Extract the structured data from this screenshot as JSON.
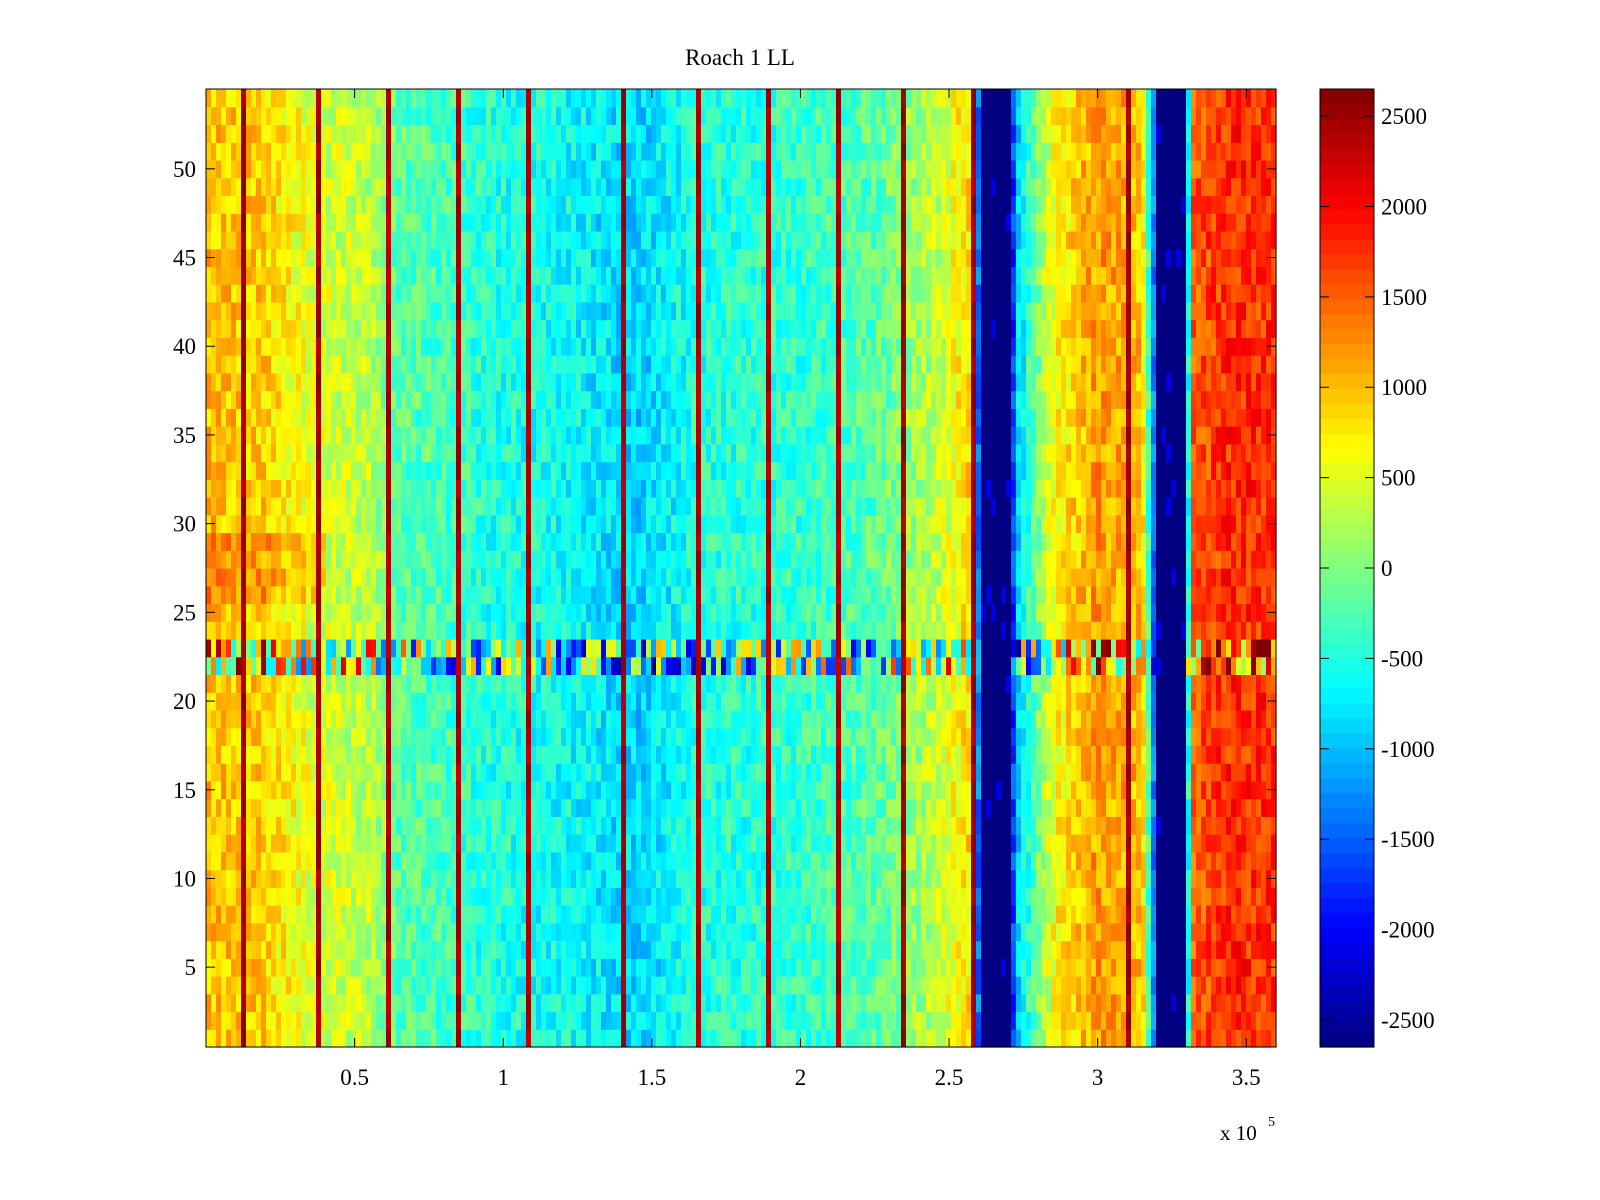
{
  "chart_data": {
    "type": "heatmap",
    "title": "Roach 1 LL",
    "xlabel": "",
    "ylabel": "",
    "x_multiplier_label": "x 10",
    "x_multiplier_exponent": "5",
    "xlim": [
      0.5,
      360000
    ],
    "ylim": [
      0.5,
      54.5
    ],
    "x_ticks": [
      {
        "value": 50000,
        "label": "0.5"
      },
      {
        "value": 100000,
        "label": "1"
      },
      {
        "value": 150000,
        "label": "1.5"
      },
      {
        "value": 200000,
        "label": "2"
      },
      {
        "value": 250000,
        "label": "2.5"
      },
      {
        "value": 300000,
        "label": "3"
      },
      {
        "value": 350000,
        "label": "3.5"
      }
    ],
    "y_ticks": [
      {
        "value": 5,
        "label": "5"
      },
      {
        "value": 10,
        "label": "10"
      },
      {
        "value": 15,
        "label": "15"
      },
      {
        "value": 20,
        "label": "20"
      },
      {
        "value": 25,
        "label": "25"
      },
      {
        "value": 30,
        "label": "30"
      },
      {
        "value": 35,
        "label": "35"
      },
      {
        "value": 40,
        "label": "40"
      },
      {
        "value": 45,
        "label": "45"
      },
      {
        "value": 50,
        "label": "50"
      }
    ],
    "colorbar": {
      "colormap": "jet",
      "clim": [
        -2650,
        2650
      ],
      "ticks": [
        {
          "value": 2500,
          "label": "2500"
        },
        {
          "value": 2000,
          "label": "2000"
        },
        {
          "value": 1500,
          "label": "1500"
        },
        {
          "value": 1000,
          "label": "1000"
        },
        {
          "value": 500,
          "label": "500"
        },
        {
          "value": 0,
          "label": "0"
        },
        {
          "value": -500,
          "label": "-500"
        },
        {
          "value": -1000,
          "label": "-1000"
        },
        {
          "value": -1500,
          "label": "-1500"
        },
        {
          "value": -2000,
          "label": "-2000"
        },
        {
          "value": -2500,
          "label": "-2500"
        }
      ]
    },
    "column_profile": [
      {
        "x": 0,
        "value": 1000
      },
      {
        "x": 20000,
        "value": 900
      },
      {
        "x": 35000,
        "value": 500
      },
      {
        "x": 55000,
        "value": 300
      },
      {
        "x": 65000,
        "value": -200
      },
      {
        "x": 85000,
        "value": -350
      },
      {
        "x": 95000,
        "value": -500
      },
      {
        "x": 120000,
        "value": -600
      },
      {
        "x": 145000,
        "value": -900
      },
      {
        "x": 165000,
        "value": -500
      },
      {
        "x": 200000,
        "value": -400
      },
      {
        "x": 225000,
        "value": -200
      },
      {
        "x": 245000,
        "value": 300
      },
      {
        "x": 258000,
        "value": 900
      },
      {
        "x": 261000,
        "value": -2650
      },
      {
        "x": 270000,
        "value": -2650
      },
      {
        "x": 273000,
        "value": -900
      },
      {
        "x": 285000,
        "value": 600
      },
      {
        "x": 300000,
        "value": 1200
      },
      {
        "x": 315000,
        "value": 1000
      },
      {
        "x": 321000,
        "value": -2650
      },
      {
        "x": 329000,
        "value": -2650
      },
      {
        "x": 332000,
        "value": 1500
      },
      {
        "x": 345000,
        "value": 1800
      },
      {
        "x": 360000,
        "value": 1700
      }
    ],
    "spike_columns_x": [
      13000,
      38000,
      61000,
      85000,
      109000,
      140000,
      166000,
      190000,
      212000,
      235000,
      259000,
      311000
    ],
    "artifact_rows_y": [
      22,
      23
    ],
    "saturated_bands": [
      {
        "x_start": 261000,
        "x_end": 271000,
        "value": -2650
      },
      {
        "x_start": 320000,
        "x_end": 330000,
        "value": -2650
      }
    ]
  }
}
